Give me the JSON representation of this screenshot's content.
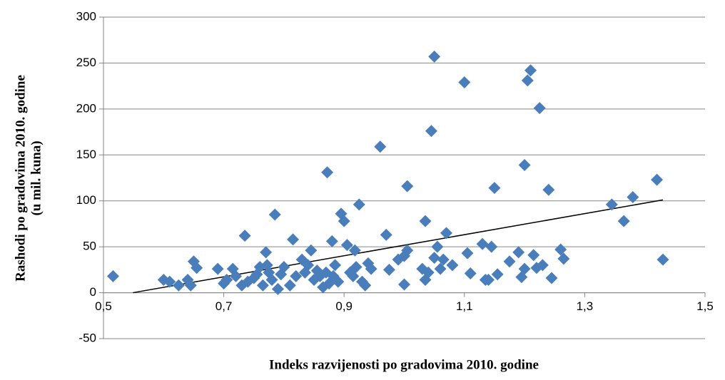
{
  "chart_data": {
    "type": "scatter",
    "x_label": "Indeks razvijenosti po gradovima 2010. godine",
    "y_label": [
      "Rashodi po gradovima 2010. godine",
      "(u mil. kuna)"
    ],
    "xlim": [
      0.5,
      1.5
    ],
    "xticks": [
      {
        "value": 0.5,
        "label": "0,5"
      },
      {
        "value": 0.7,
        "label": "0,7"
      },
      {
        "value": 0.9,
        "label": "0,9"
      },
      {
        "value": 1.1,
        "label": "1,1"
      },
      {
        "value": 1.3,
        "label": "1,3"
      },
      {
        "value": 1.5,
        "label": "1,5"
      }
    ],
    "ylim": [
      -50,
      300
    ],
    "yticks": [
      -50,
      0,
      50,
      100,
      150,
      200,
      250,
      300
    ],
    "grid": true,
    "color": "#4a7ebb",
    "trendline": {
      "color": "#000000",
      "x": [
        0.549,
        1.43
      ],
      "y": [
        0,
        101
      ]
    },
    "x": [
      0.516,
      0.6,
      0.61,
      0.625,
      0.64,
      0.645,
      0.65,
      0.655,
      0.69,
      0.7,
      0.705,
      0.715,
      0.72,
      0.73,
      0.735,
      0.74,
      0.75,
      0.755,
      0.76,
      0.765,
      0.77,
      0.772,
      0.775,
      0.78,
      0.785,
      0.79,
      0.795,
      0.8,
      0.81,
      0.815,
      0.82,
      0.83,
      0.835,
      0.84,
      0.845,
      0.85,
      0.855,
      0.86,
      0.865,
      0.87,
      0.872,
      0.875,
      0.88,
      0.882,
      0.885,
      0.89,
      0.895,
      0.9,
      0.905,
      0.91,
      0.915,
      0.918,
      0.92,
      0.925,
      0.93,
      0.935,
      0.94,
      0.945,
      0.96,
      0.97,
      0.975,
      0.99,
      1.0,
      1.0,
      1.005,
      1.005,
      1.03,
      1.035,
      1.035,
      1.04,
      1.045,
      1.05,
      1.05,
      1.055,
      1.06,
      1.065,
      1.07,
      1.08,
      1.1,
      1.105,
      1.11,
      1.13,
      1.135,
      1.14,
      1.145,
      1.15,
      1.155,
      1.175,
      1.19,
      1.195,
      1.2,
      1.2,
      1.205,
      1.21,
      1.215,
      1.22,
      1.225,
      1.23,
      1.24,
      1.245,
      1.26,
      1.265,
      1.345,
      1.365,
      1.38,
      1.42,
      1.43
    ],
    "y": [
      18,
      14,
      12,
      8,
      14,
      8,
      34,
      27,
      26,
      10,
      14,
      26,
      18,
      8,
      62,
      12,
      16,
      20,
      28,
      8,
      44,
      30,
      22,
      14,
      85,
      4,
      20,
      28,
      8,
      58,
      18,
      36,
      22,
      30,
      46,
      14,
      24,
      18,
      6,
      22,
      131,
      10,
      56,
      18,
      30,
      12,
      86,
      78,
      52,
      22,
      18,
      46,
      28,
      96,
      12,
      8,
      32,
      26,
      159,
      63,
      25,
      36,
      40,
      9,
      116,
      46,
      26,
      78,
      14,
      22,
      176,
      38,
      257,
      50,
      26,
      36,
      65,
      30,
      229,
      43,
      21,
      53,
      14,
      14,
      50,
      114,
      20,
      34,
      44,
      17,
      26,
      139,
      231,
      242,
      41,
      27,
      201,
      30,
      112,
      16,
      47,
      37,
      96,
      78,
      104,
      123,
      36
    ]
  }
}
